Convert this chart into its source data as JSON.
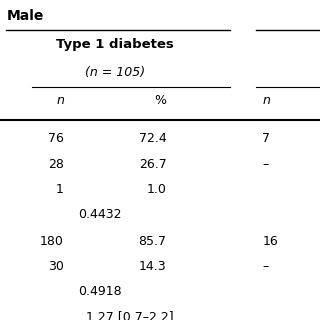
{
  "title_sex": "Male",
  "col_header1": "Type 1 diabetes",
  "col_header2": "(n = 105)",
  "sub_col1": "n",
  "sub_col2": "%",
  "sub_col3": "n",
  "background": "#ffffff",
  "text_color": "#000000"
}
